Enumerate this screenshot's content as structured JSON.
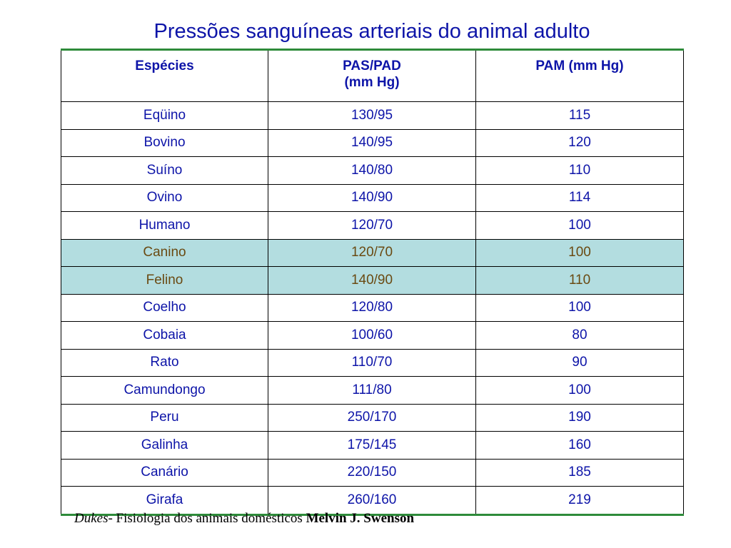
{
  "title": "Pressões sanguíneas arteriais do animal adulto",
  "table": {
    "headers": {
      "species": "Espécies",
      "pas_pad_line1": "PAS/PAD",
      "pas_pad_line2": "(mm Hg)",
      "pam": "PAM (mm Hg)"
    },
    "rows": [
      {
        "species": "Eqüino",
        "pas_pad": "130/95",
        "pam": "115",
        "highlight": false
      },
      {
        "species": "Bovino",
        "pas_pad": "140/95",
        "pam": "120",
        "highlight": false
      },
      {
        "species": "Suíno",
        "pas_pad": "140/80",
        "pam": "110",
        "highlight": false
      },
      {
        "species": "Ovino",
        "pas_pad": "140/90",
        "pam": "114",
        "highlight": false
      },
      {
        "species": "Humano",
        "pas_pad": "120/70",
        "pam": "100",
        "highlight": false
      },
      {
        "species": "Canino",
        "pas_pad": "120/70",
        "pam": "100",
        "highlight": true
      },
      {
        "species": "Felino",
        "pas_pad": "140/90",
        "pam": "110",
        "highlight": true
      },
      {
        "species": "Coelho",
        "pas_pad": "120/80",
        "pam": "100",
        "highlight": false
      },
      {
        "species": "Cobaia",
        "pas_pad": "100/60",
        "pam": "80",
        "highlight": false
      },
      {
        "species": "Rato",
        "pas_pad": "110/70",
        "pam": "90",
        "highlight": false
      },
      {
        "species": "Camundongo",
        "pas_pad": "111/80",
        "pam": "100",
        "highlight": false
      },
      {
        "species": "Peru",
        "pas_pad": "250/170",
        "pam": "190",
        "highlight": false
      },
      {
        "species": "Galinha",
        "pas_pad": "175/145",
        "pam": "160",
        "highlight": false
      },
      {
        "species": "Canário",
        "pas_pad": "220/150",
        "pam": "185",
        "highlight": false
      },
      {
        "species": "Girafa",
        "pas_pad": "260/160",
        "pam": "219",
        "highlight": false
      }
    ]
  },
  "caption": {
    "book": "Dukes",
    "subtitle": "- Fisiologia dos animais domésticos ",
    "author": "Melvin J. Swenson"
  },
  "colors": {
    "text": "#0d14a8",
    "highlight_bg": "#b3dde0",
    "highlight_text": "#6a4a12",
    "rule": "#2e8b3a"
  }
}
